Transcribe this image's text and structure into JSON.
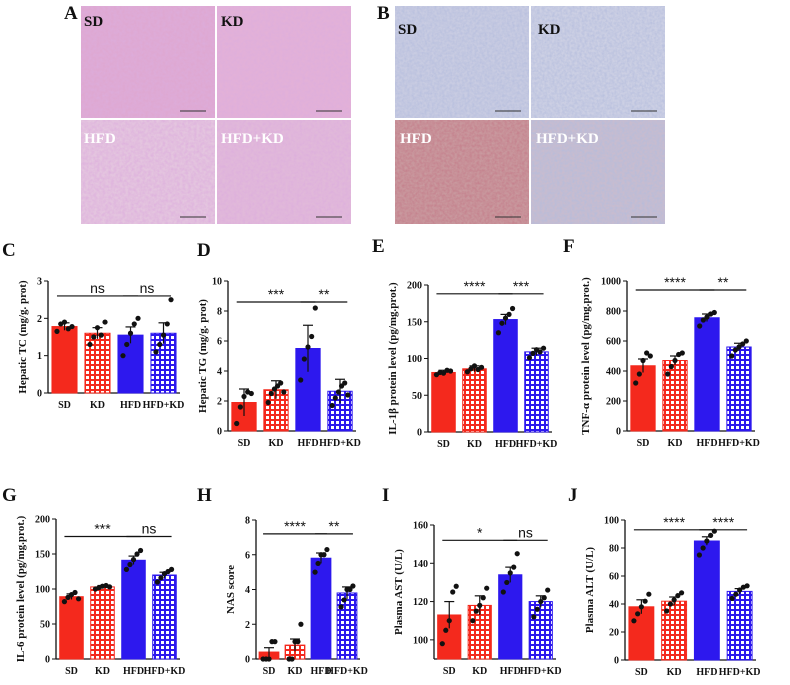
{
  "figure_panels": {
    "A": {
      "letter": "A",
      "labels": [
        "SD",
        "KD",
        "HFD",
        "HFD+KD"
      ]
    },
    "B": {
      "letter": "B",
      "labels": [
        "SD",
        "KD",
        "HFD",
        "HFD+KD"
      ]
    }
  },
  "colors": {
    "SD": "#f4291d",
    "KD": "#f4291d",
    "HFD": "#2d18ee",
    "HFD+KD": "#2d18ee",
    "he_stain": "#dea8d2",
    "ihc_stain": "#c9cce2",
    "ihc_hfd": "#c99a9f"
  },
  "chart_data": [
    {
      "panel": "C",
      "type": "bar",
      "categories": [
        "SD",
        "KD",
        "HFD",
        "HFD+KD"
      ],
      "values": [
        1.78,
        1.6,
        1.55,
        1.6
      ],
      "errors": [
        0.1,
        0.15,
        0.22,
        0.28
      ],
      "points": [
        [
          1.65,
          1.85,
          1.9,
          1.72,
          1.78
        ],
        [
          1.3,
          1.5,
          1.75,
          1.55,
          1.9
        ],
        [
          1.0,
          1.3,
          1.6,
          1.85,
          2.0
        ],
        [
          1.1,
          1.3,
          1.55,
          1.85,
          2.5
        ]
      ],
      "ylabel": "Hepatic TC (mg/g. prot)",
      "ylim": [
        0,
        3
      ],
      "yticks": [
        0,
        1,
        2,
        3
      ],
      "sig": [
        {
          "from": 0,
          "to": 2,
          "text": "ns",
          "y": 2.6
        },
        {
          "from": 2,
          "to": 3,
          "text": "ns",
          "y": 2.6
        }
      ]
    },
    {
      "panel": "D",
      "type": "bar",
      "categories": [
        "SD",
        "KD",
        "HFD",
        "HFD+KD"
      ],
      "values": [
        1.9,
        2.75,
        5.5,
        2.65
      ],
      "errors": [
        0.9,
        0.6,
        1.55,
        0.8
      ],
      "points": [
        [
          0.5,
          1.6,
          2.3,
          2.6,
          2.5
        ],
        [
          1.9,
          2.5,
          2.8,
          3.0,
          3.2,
          2.6
        ],
        [
          3.4,
          4.8,
          5.6,
          6.3,
          8.2
        ],
        [
          1.7,
          2.2,
          2.6,
          3.0,
          3.2,
          2.4
        ]
      ],
      "ylabel": "Hepatic TG (mg/g. prot)",
      "ylim": [
        0,
        10
      ],
      "yticks": [
        0,
        2,
        4,
        6,
        8,
        10
      ],
      "sig": [
        {
          "from": 0,
          "to": 2,
          "text": "***",
          "y": 8.6
        },
        {
          "from": 2,
          "to": 3,
          "text": "**",
          "y": 8.6
        }
      ]
    },
    {
      "panel": "E",
      "type": "bar",
      "categories": [
        "SD",
        "KD",
        "HFD",
        "HFD+KD"
      ],
      "values": [
        81,
        86,
        153,
        109
      ],
      "errors": [
        3,
        4,
        7,
        5
      ],
      "points": [
        [
          78,
          81,
          80,
          84,
          83
        ],
        [
          82,
          86,
          90,
          85,
          88
        ],
        [
          135,
          148,
          155,
          160,
          168
        ],
        [
          101,
          107,
          112,
          109,
          114
        ]
      ],
      "ylabel": "IL-1β protein level (pg/mg.prot.)",
      "ylim": [
        0,
        200
      ],
      "yticks": [
        0,
        50,
        100,
        150,
        200
      ],
      "sig": [
        {
          "from": 0,
          "to": 2,
          "text": "****",
          "y": 188
        },
        {
          "from": 2,
          "to": 3,
          "text": "***",
          "y": 188
        }
      ]
    },
    {
      "panel": "F",
      "type": "bar",
      "categories": [
        "SD",
        "KD",
        "HFD",
        "HFD+KD"
      ],
      "values": [
        435,
        470,
        755,
        560
      ],
      "errors": [
        45,
        30,
        25,
        25
      ],
      "points": [
        [
          320,
          380,
          470,
          520,
          500
        ],
        [
          380,
          430,
          470,
          510,
          520
        ],
        [
          700,
          740,
          760,
          780,
          790
        ],
        [
          500,
          540,
          560,
          580,
          600
        ]
      ],
      "ylabel": "TNF-α protein level (pg/mg.prot.)",
      "ylim": [
        0,
        1000
      ],
      "yticks": [
        0,
        200,
        400,
        600,
        800,
        1000
      ],
      "sig": [
        {
          "from": 0,
          "to": 2,
          "text": "****",
          "y": 940
        },
        {
          "from": 2,
          "to": 3,
          "text": "**",
          "y": 940
        }
      ]
    },
    {
      "panel": "G",
      "type": "bar",
      "categories": [
        "SD",
        "KD",
        "HFD",
        "HFD+KD"
      ],
      "values": [
        89,
        103,
        141,
        120
      ],
      "errors": [
        4,
        2,
        6,
        4
      ],
      "points": [
        [
          82,
          88,
          92,
          95,
          86
        ],
        [
          100,
          102,
          104,
          105,
          103
        ],
        [
          128,
          135,
          142,
          150,
          155
        ],
        [
          110,
          116,
          122,
          125,
          128
        ]
      ],
      "ylabel": "IL-6 protein level (pg/mg.prot.)",
      "ylim": [
        0,
        200
      ],
      "yticks": [
        0,
        50,
        100,
        150,
        200
      ],
      "sig": [
        {
          "from": 0,
          "to": 2,
          "text": "***",
          "y": 175
        },
        {
          "from": 2,
          "to": 3,
          "text": "ns",
          "y": 175
        }
      ]
    },
    {
      "panel": "H",
      "type": "bar",
      "categories": [
        "SD",
        "KD",
        "HFD",
        "HFD+KD"
      ],
      "values": [
        0.4,
        0.8,
        5.8,
        3.8
      ],
      "errors": [
        0.25,
        0.35,
        0.3,
        0.35
      ],
      "points": [
        [
          0,
          0,
          0,
          1,
          1
        ],
        [
          0,
          0,
          1,
          1,
          2
        ],
        [
          5,
          5.5,
          6,
          6,
          6.3
        ],
        [
          3,
          3.4,
          4,
          4,
          4.2
        ]
      ],
      "ylabel": "NAS score",
      "ylim": [
        0,
        8
      ],
      "yticks": [
        0,
        2,
        4,
        6,
        8
      ],
      "sig": [
        {
          "from": 0,
          "to": 2,
          "text": "****",
          "y": 7.2
        },
        {
          "from": 2,
          "to": 3,
          "text": "**",
          "y": 7.2
        }
      ]
    },
    {
      "panel": "I",
      "type": "bar",
      "categories": [
        "SD",
        "KD",
        "HFD",
        "HFD+KD"
      ],
      "values": [
        113,
        118,
        134,
        120
      ],
      "errors": [
        7,
        5,
        4,
        3
      ],
      "points": [
        [
          98,
          105,
          110,
          125,
          128
        ],
        [
          110,
          115,
          118,
          122,
          127
        ],
        [
          125,
          130,
          135,
          138,
          145
        ],
        [
          112,
          116,
          120,
          122,
          126
        ]
      ],
      "ylabel": "Plasma AST (U/L)",
      "ylim": [
        90,
        160
      ],
      "yticks": [
        100,
        120,
        140,
        160
      ],
      "sig": [
        {
          "from": 0,
          "to": 2,
          "text": "*",
          "y": 152
        },
        {
          "from": 2,
          "to": 3,
          "text": "ns",
          "y": 152
        }
      ]
    },
    {
      "panel": "J",
      "type": "bar",
      "categories": [
        "SD",
        "KD",
        "HFD",
        "HFD+KD"
      ],
      "values": [
        38,
        42,
        85,
        49
      ],
      "errors": [
        5,
        3,
        3,
        2
      ],
      "points": [
        [
          28,
          33,
          38,
          42,
          47
        ],
        [
          35,
          40,
          43,
          46,
          48
        ],
        [
          75,
          80,
          85,
          89,
          92
        ],
        [
          44,
          47,
          50,
          52,
          53
        ]
      ],
      "ylabel": "Plasma ALT (U/L)",
      "ylim": [
        0,
        100
      ],
      "yticks": [
        0,
        20,
        40,
        60,
        80,
        100
      ],
      "sig": [
        {
          "from": 0,
          "to": 2,
          "text": "****",
          "y": 93
        },
        {
          "from": 2,
          "to": 3,
          "text": "****",
          "y": 93
        }
      ]
    }
  ]
}
